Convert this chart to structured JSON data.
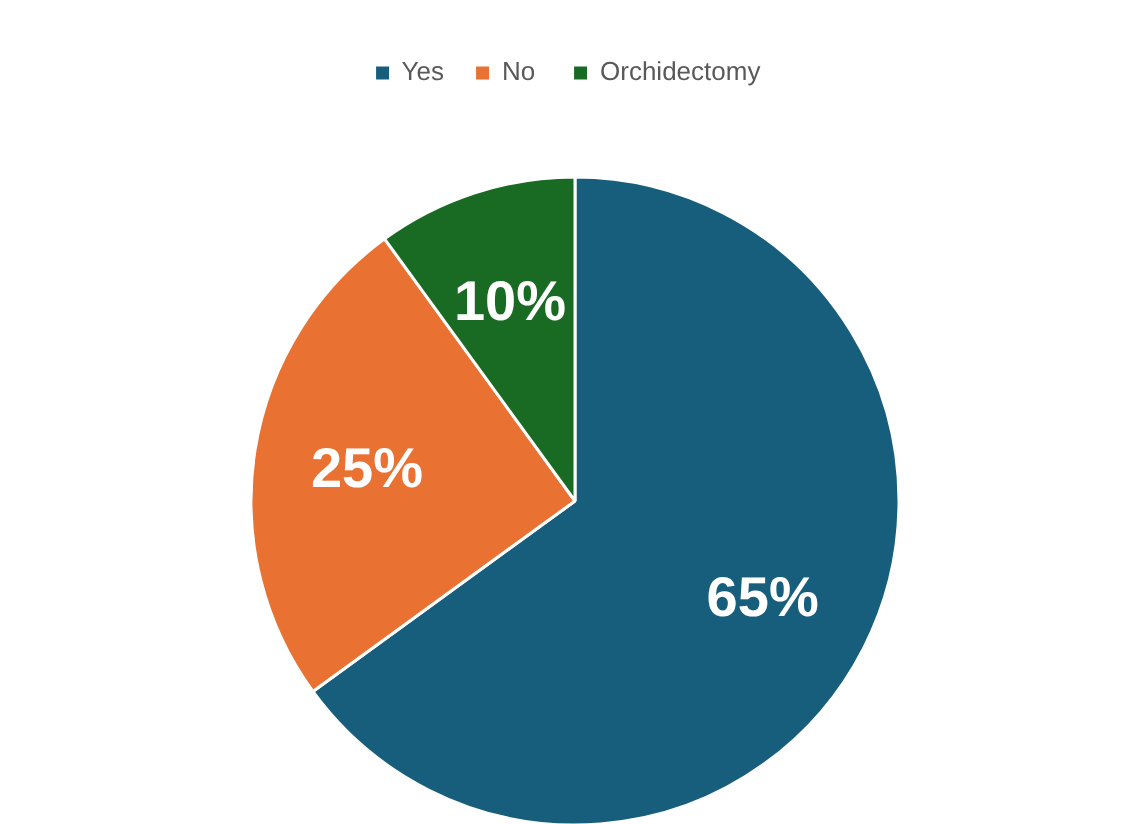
{
  "chart_data": {
    "type": "pie",
    "categories": [
      "Yes",
      "No",
      "Orchidectomy"
    ],
    "values": [
      65,
      25,
      10
    ],
    "colors": [
      "#175e7c",
      "#e97132",
      "#196b24"
    ],
    "value_labels": [
      "65%",
      "25%",
      "10%"
    ],
    "legend": "top"
  }
}
